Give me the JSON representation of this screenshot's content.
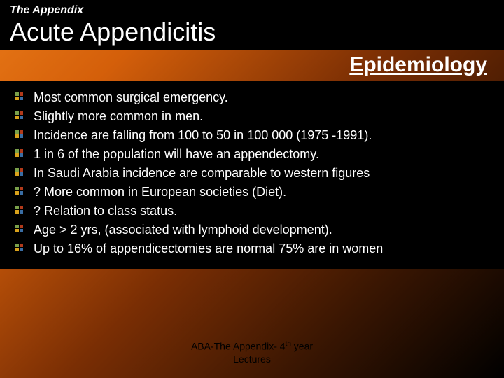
{
  "header": {
    "supertitle": "The Appendix",
    "title": "Acute Appendicitis",
    "subtitle": "Epidemiology"
  },
  "bullets": [
    "Most common surgical emergency.",
    "Slightly more common in men.",
    "Incidence are falling from 100 to 50 in 100 000  (1975 -1991).",
    "1 in 6 of the population will have an  appendectomy.",
    "In Saudi Arabia incidence are comparable to western figures",
    "? More common in European societies (Diet).",
    "? Relation to class status.",
    "Age > 2 yrs, (associated with lymphoid development).",
    "Up to 16% of appendicectomies are normal 75% are in women"
  ],
  "footer": {
    "line1_prefix": "ABA-The Appendix- 4",
    "line1_suffix": "th",
    "line1_end": " year",
    "line2": "Lectures"
  },
  "colors": {
    "text": "#ffffff",
    "block_bg": "#000000",
    "bullet_q1": "#7aa14a",
    "bullet_q2": "#b23a1a",
    "bullet_q3": "#d9a21b",
    "bullet_q4": "#3a6ea5"
  }
}
